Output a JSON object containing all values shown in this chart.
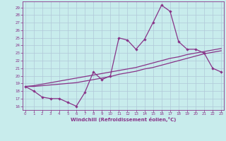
{
  "xlabel": "Windchill (Refroidissement éolien,°C)",
  "background_color": "#c8ecec",
  "line_color": "#883388",
  "grid_color": "#b0c8d8",
  "x_ticks": [
    0,
    1,
    2,
    3,
    4,
    5,
    6,
    7,
    8,
    9,
    10,
    11,
    12,
    13,
    14,
    15,
    16,
    17,
    18,
    19,
    20,
    21,
    22,
    23
  ],
  "y_ticks": [
    16,
    17,
    18,
    19,
    20,
    21,
    22,
    23,
    24,
    25,
    26,
    27,
    28,
    29
  ],
  "xlim": [
    -0.3,
    23.3
  ],
  "ylim": [
    15.5,
    29.8
  ],
  "line1_x": [
    0,
    1,
    2,
    3,
    4,
    5,
    6,
    7,
    8,
    9,
    10,
    11,
    12,
    13,
    14,
    15,
    16,
    17,
    18,
    19,
    20,
    21,
    22,
    23
  ],
  "line1_y": [
    18.6,
    18.0,
    17.2,
    17.0,
    17.0,
    16.5,
    16.0,
    17.8,
    20.5,
    19.5,
    20.0,
    25.0,
    24.7,
    23.5,
    24.8,
    27.0,
    29.3,
    28.5,
    24.5,
    23.5,
    23.5,
    23.0,
    21.0,
    20.5
  ],
  "line2_x": [
    0,
    1,
    2,
    3,
    4,
    5,
    6,
    7,
    8,
    9,
    10,
    11,
    12,
    13,
    14,
    15,
    16,
    17,
    18,
    19,
    20,
    21,
    22,
    23
  ],
  "line2_y": [
    18.6,
    18.6,
    18.7,
    18.8,
    18.9,
    19.0,
    19.1,
    19.3,
    19.5,
    19.7,
    19.9,
    20.2,
    20.4,
    20.6,
    20.9,
    21.1,
    21.4,
    21.7,
    22.0,
    22.3,
    22.6,
    22.9,
    23.1,
    23.3
  ],
  "line3_x": [
    0,
    1,
    2,
    3,
    4,
    5,
    6,
    7,
    8,
    9,
    10,
    11,
    12,
    13,
    14,
    15,
    16,
    17,
    18,
    19,
    20,
    21,
    22,
    23
  ],
  "line3_y": [
    18.6,
    18.7,
    18.9,
    19.1,
    19.3,
    19.5,
    19.7,
    19.9,
    20.1,
    20.3,
    20.5,
    20.7,
    20.9,
    21.1,
    21.4,
    21.7,
    22.0,
    22.3,
    22.5,
    22.8,
    23.0,
    23.2,
    23.4,
    23.6
  ]
}
